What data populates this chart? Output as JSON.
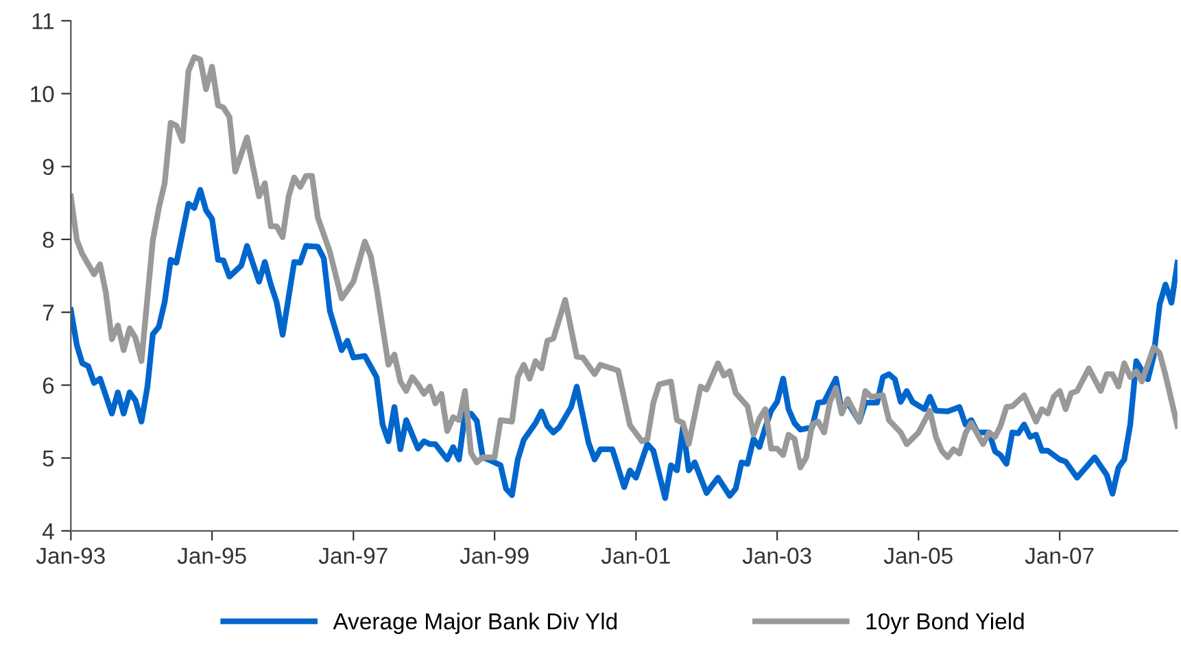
{
  "chart_data": {
    "type": "line",
    "xlim": [
      "1993-01",
      "2008-09"
    ],
    "xticks": [
      {
        "value": "1993-01",
        "label": "Jan-93"
      },
      {
        "value": "1995-01",
        "label": "Jan-95"
      },
      {
        "value": "1997-01",
        "label": "Jan-97"
      },
      {
        "value": "1999-01",
        "label": "Jan-99"
      },
      {
        "value": "2001-01",
        "label": "Jan-01"
      },
      {
        "value": "2003-01",
        "label": "Jan-03"
      },
      {
        "value": "2005-01",
        "label": "Jan-05"
      },
      {
        "value": "2007-01",
        "label": "Jan-07"
      }
    ],
    "ylim": [
      4,
      11
    ],
    "yticks": [
      4,
      5,
      6,
      7,
      8,
      9,
      10,
      11
    ],
    "grid": false,
    "legend": "bottom",
    "marker": "none",
    "line_style": "solid",
    "series": [
      {
        "name": "Average Major Bank Div Yld",
        "color": "#0066cc",
        "x": [
          "1993-01",
          "1993-02",
          "1993-03",
          "1993-04",
          "1993-05",
          "1993-06",
          "1993-08",
          "1993-09",
          "1993-10",
          "1993-11",
          "1993-12",
          "1994-01",
          "1994-02",
          "1994-03",
          "1994-04",
          "1994-05",
          "1994-06",
          "1994-07",
          "1994-09",
          "1994-10",
          "1994-11",
          "1994-12",
          "1995-01",
          "1995-02",
          "1995-03",
          "1995-04",
          "1995-06",
          "1995-07",
          "1995-09",
          "1995-10",
          "1995-11",
          "1995-12",
          "1996-01",
          "1996-03",
          "1996-04",
          "1996-05",
          "1996-07",
          "1996-08",
          "1996-09",
          "1996-11",
          "1996-12",
          "1997-01",
          "1997-03",
          "1997-05",
          "1997-06",
          "1997-07",
          "1997-08",
          "1997-09",
          "1997-10",
          "1997-12",
          "1998-01",
          "1998-02",
          "1998-03",
          "1998-05",
          "1998-06",
          "1998-07",
          "1998-08",
          "1998-09",
          "1998-10",
          "1998-11",
          "1999-01",
          "1999-02",
          "1999-03",
          "1999-04",
          "1999-05",
          "1999-06",
          "1999-08",
          "1999-09",
          "1999-10",
          "1999-11",
          "1999-12",
          "2000-02",
          "2000-03",
          "2000-05",
          "2000-06",
          "2000-07",
          "2000-09",
          "2000-11",
          "2000-12",
          "2001-01",
          "2001-03",
          "2001-04",
          "2001-06",
          "2001-07",
          "2001-08",
          "2001-09",
          "2001-10",
          "2001-11",
          "2002-01",
          "2002-03",
          "2002-05",
          "2002-06",
          "2002-07",
          "2002-08",
          "2002-09",
          "2002-10",
          "2002-11",
          "2002-12",
          "2003-01",
          "2003-02",
          "2003-03",
          "2003-04",
          "2003-05",
          "2003-07",
          "2003-08",
          "2003-09",
          "2003-11",
          "2003-12",
          "2004-01",
          "2004-03",
          "2004-04",
          "2004-06",
          "2004-07",
          "2004-08",
          "2004-09",
          "2004-10",
          "2004-11",
          "2004-12",
          "2005-02",
          "2005-03",
          "2005-04",
          "2005-06",
          "2005-08",
          "2005-09",
          "2005-10",
          "2005-11",
          "2006-01",
          "2006-02",
          "2006-03",
          "2006-04",
          "2006-05",
          "2006-06",
          "2006-07",
          "2006-08",
          "2006-09",
          "2006-10",
          "2006-11",
          "2007-01",
          "2007-02",
          "2007-04",
          "2007-07",
          "2007-09",
          "2007-10",
          "2007-11",
          "2007-12",
          "2008-01",
          "2008-02",
          "2008-03",
          "2008-04",
          "2008-05",
          "2008-06",
          "2008-07",
          "2008-08",
          "2008-09"
        ],
        "values": [
          7.03,
          6.55,
          6.3,
          6.26,
          6.03,
          6.09,
          5.61,
          5.9,
          5.61,
          5.9,
          5.79,
          5.5,
          5.98,
          6.7,
          6.8,
          7.14,
          7.72,
          7.68,
          8.49,
          8.43,
          8.68,
          8.4,
          8.28,
          7.72,
          7.71,
          7.49,
          7.64,
          7.91,
          7.42,
          7.69,
          7.38,
          7.14,
          6.69,
          7.69,
          7.68,
          7.91,
          7.9,
          7.74,
          7.02,
          6.48,
          6.61,
          6.38,
          6.4,
          6.11,
          5.46,
          5.23,
          5.7,
          5.12,
          5.52,
          5.13,
          5.23,
          5.19,
          5.19,
          4.98,
          5.15,
          4.98,
          5.61,
          5.61,
          5.51,
          5.01,
          4.94,
          4.9,
          4.58,
          4.49,
          4.98,
          5.25,
          5.48,
          5.64,
          5.44,
          5.35,
          5.42,
          5.7,
          5.98,
          5.21,
          4.98,
          5.12,
          5.12,
          4.6,
          4.83,
          4.73,
          5.19,
          5.1,
          4.45,
          4.9,
          4.83,
          5.42,
          4.83,
          4.94,
          4.52,
          4.73,
          4.48,
          4.58,
          4.94,
          4.92,
          5.26,
          5.15,
          5.42,
          5.65,
          5.77,
          6.09,
          5.67,
          5.48,
          5.39,
          5.42,
          5.76,
          5.77,
          6.09,
          5.65,
          5.76,
          5.5,
          5.76,
          5.76,
          6.11,
          6.15,
          6.08,
          5.77,
          5.92,
          5.77,
          5.67,
          5.84,
          5.65,
          5.64,
          5.7,
          5.46,
          5.52,
          5.35,
          5.35,
          5.09,
          5.04,
          4.92,
          5.35,
          5.34,
          5.46,
          5.29,
          5.32,
          5.1,
          5.1,
          4.98,
          4.95,
          4.73,
          5.01,
          4.77,
          4.51,
          4.87,
          4.98,
          5.46,
          6.33,
          6.2,
          6.08,
          6.4,
          7.11,
          7.38,
          7.13,
          7.68
        ]
      },
      {
        "name": "10yr Bond Yield",
        "color": "#999999",
        "x": [
          "1993-01",
          "1993-02",
          "1993-03",
          "1993-05",
          "1993-06",
          "1993-07",
          "1993-08",
          "1993-09",
          "1993-10",
          "1993-11",
          "1993-12",
          "1994-01",
          "1994-03",
          "1994-04",
          "1994-05",
          "1994-06",
          "1994-07",
          "1994-08",
          "1994-09",
          "1994-10",
          "1994-11",
          "1994-12",
          "1995-01",
          "1995-02",
          "1995-03",
          "1995-04",
          "1995-05",
          "1995-07",
          "1995-09",
          "1995-10",
          "1995-11",
          "1995-12",
          "1996-01",
          "1996-02",
          "1996-03",
          "1996-04",
          "1996-05",
          "1996-06",
          "1996-07",
          "1996-09",
          "1996-11",
          "1997-01",
          "1997-03",
          "1997-04",
          "1997-05",
          "1997-07",
          "1997-08",
          "1997-09",
          "1997-10",
          "1997-11",
          "1997-12",
          "1998-01",
          "1998-02",
          "1998-03",
          "1998-04",
          "1998-05",
          "1998-06",
          "1998-07",
          "1998-08",
          "1998-09",
          "1998-10",
          "1998-11",
          "1999-01",
          "1999-02",
          "1999-04",
          "1999-05",
          "1999-06",
          "1999-07",
          "1999-08",
          "1999-09",
          "1999-10",
          "1999-11",
          "2000-01",
          "2000-03",
          "2000-04",
          "2000-06",
          "2000-07",
          "2000-10",
          "2000-12",
          "2001-02",
          "2001-03",
          "2001-04",
          "2001-05",
          "2001-07",
          "2001-08",
          "2001-09",
          "2001-10",
          "2001-12",
          "2002-01",
          "2002-03",
          "2002-04",
          "2002-05",
          "2002-06",
          "2002-08",
          "2002-09",
          "2002-10",
          "2002-11",
          "2002-12",
          "2003-01",
          "2003-02",
          "2003-03",
          "2003-04",
          "2003-05",
          "2003-06",
          "2003-07",
          "2003-08",
          "2003-09",
          "2003-10",
          "2003-11",
          "2003-12",
          "2004-01",
          "2004-03",
          "2004-04",
          "2004-05",
          "2004-07",
          "2004-08",
          "2004-10",
          "2004-11",
          "2005-01",
          "2005-03",
          "2005-04",
          "2005-05",
          "2005-06",
          "2005-07",
          "2005-08",
          "2005-09",
          "2005-10",
          "2005-12",
          "2006-01",
          "2006-02",
          "2006-03",
          "2006-04",
          "2006-05",
          "2006-07",
          "2006-09",
          "2006-10",
          "2006-11",
          "2006-12",
          "2007-01",
          "2007-02",
          "2007-03",
          "2007-04",
          "2007-06",
          "2007-08",
          "2007-09",
          "2007-10",
          "2007-11",
          "2007-12",
          "2008-01",
          "2008-02",
          "2008-03",
          "2008-05",
          "2008-06",
          "2008-07",
          "2008-09"
        ],
        "values": [
          8.59,
          7.99,
          7.8,
          7.52,
          7.66,
          7.27,
          6.63,
          6.82,
          6.48,
          6.78,
          6.65,
          6.33,
          7.99,
          8.43,
          8.77,
          9.6,
          9.56,
          9.35,
          10.31,
          10.5,
          10.47,
          10.06,
          10.37,
          9.84,
          9.81,
          9.68,
          8.93,
          9.4,
          8.59,
          8.77,
          8.18,
          8.18,
          8.03,
          8.59,
          8.85,
          8.72,
          8.87,
          8.87,
          8.3,
          7.83,
          7.19,
          7.42,
          7.97,
          7.77,
          7.33,
          6.28,
          6.42,
          6.05,
          5.92,
          6.11,
          6.01,
          5.88,
          5.98,
          5.75,
          5.88,
          5.37,
          5.56,
          5.52,
          5.92,
          5.07,
          4.94,
          5.01,
          5.01,
          5.52,
          5.5,
          6.11,
          6.28,
          6.09,
          6.33,
          6.23,
          6.61,
          6.64,
          7.17,
          6.39,
          6.38,
          6.15,
          6.28,
          6.2,
          5.45,
          5.23,
          5.26,
          5.76,
          6.01,
          6.05,
          5.52,
          5.48,
          5.19,
          5.98,
          5.94,
          6.3,
          6.13,
          6.19,
          5.89,
          5.71,
          5.32,
          5.54,
          5.67,
          5.13,
          5.13,
          5.04,
          5.32,
          5.26,
          4.87,
          5.01,
          5.46,
          5.5,
          5.35,
          5.77,
          5.96,
          5.61,
          5.81,
          5.5,
          5.92,
          5.84,
          5.86,
          5.52,
          5.35,
          5.19,
          5.35,
          5.65,
          5.29,
          5.1,
          5.01,
          5.12,
          5.06,
          5.34,
          5.48,
          5.19,
          5.35,
          5.29,
          5.44,
          5.7,
          5.71,
          5.86,
          5.5,
          5.67,
          5.61,
          5.84,
          5.92,
          5.67,
          5.89,
          5.92,
          6.23,
          5.92,
          6.15,
          6.15,
          5.98,
          6.3,
          6.11,
          6.19,
          6.05,
          6.52,
          6.44,
          6.14,
          5.44
        ]
      }
    ]
  }
}
